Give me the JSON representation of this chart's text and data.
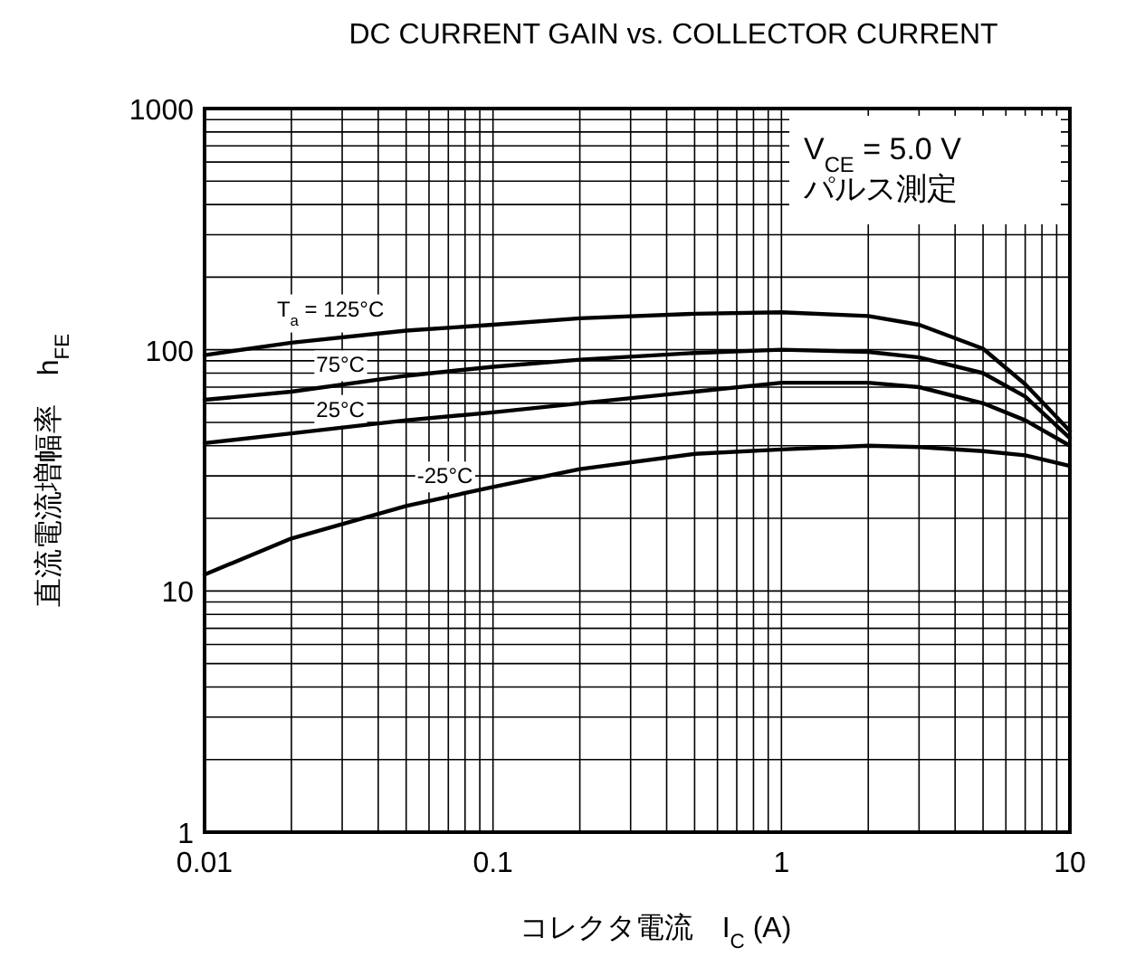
{
  "chart_data": {
    "type": "line",
    "title": "DC CURRENT GAIN vs. COLLECTOR CURRENT",
    "xlabel": "コレクタ電流　I$_{C}$ (A)",
    "ylabel": "直流電流増幅率　h$_{FE}$",
    "annotations": [
      "V$_{CE}$ = 5.0 V",
      "パルス測定"
    ],
    "x": [
      0.01,
      0.02,
      0.05,
      0.1,
      0.2,
      0.5,
      1,
      2,
      3,
      5,
      7,
      10
    ],
    "series": [
      {
        "name": "T$_{a}$ = 125°C",
        "color": "#000000",
        "values": [
          95,
          107,
          120,
          127,
          135,
          141,
          143,
          138,
          127,
          101,
          72,
          46
        ]
      },
      {
        "name": "75°C",
        "color": "#000000",
        "values": [
          62,
          67,
          78,
          85,
          91,
          97,
          100,
          98,
          93,
          80,
          64,
          43
        ]
      },
      {
        "name": "25°C",
        "color": "#000000",
        "values": [
          41,
          45,
          51,
          55,
          60,
          67,
          73,
          73,
          70,
          60,
          51,
          40
        ]
      },
      {
        "name": "-25°C",
        "color": "#000000",
        "values": [
          11.7,
          16.5,
          22.5,
          27,
          32,
          37,
          38.6,
          40,
          39.5,
          38,
          36.5,
          33
        ]
      }
    ],
    "log": "xy",
    "xlim": [
      0.01,
      10
    ],
    "ylim": [
      1,
      1000
    ],
    "xticks": [
      0.01,
      0.1,
      1,
      10
    ],
    "yticks": [
      1,
      10,
      100,
      1000
    ],
    "grid": true,
    "marker": "none",
    "line_style": "solid",
    "legend": false
  }
}
